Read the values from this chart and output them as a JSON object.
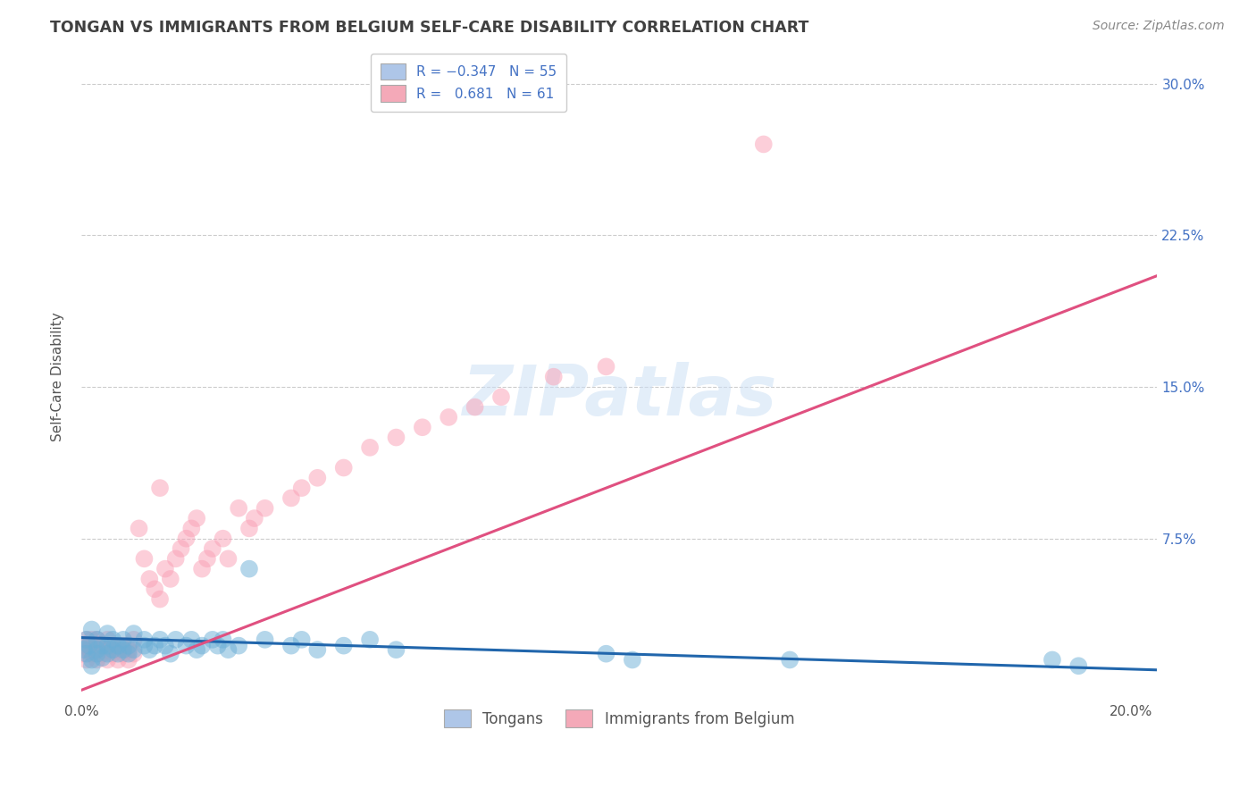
{
  "title": "TONGAN VS IMMIGRANTS FROM BELGIUM SELF-CARE DISABILITY CORRELATION CHART",
  "source": "Source: ZipAtlas.com",
  "ylabel": "Self-Care Disability",
  "xlim": [
    0.0,
    0.205
  ],
  "ylim": [
    -0.005,
    0.315
  ],
  "xticks": [
    0.0,
    0.05,
    0.1,
    0.15,
    0.2
  ],
  "xticklabels": [
    "0.0%",
    "",
    "",
    "",
    "20.0%"
  ],
  "yticks": [
    0.0,
    0.075,
    0.15,
    0.225,
    0.3
  ],
  "yticklabels_left": [
    "",
    "",
    "",
    "",
    ""
  ],
  "yticklabels_right": [
    "",
    "7.5%",
    "15.0%",
    "22.5%",
    "30.0%"
  ],
  "watermark": "ZIPatlas",
  "legend_labels_bottom": [
    "Tongans",
    "Immigrants from Belgium"
  ],
  "blue_color": "#6baed6",
  "pink_color": "#fa9fb5",
  "blue_line_color": "#2166ac",
  "pink_line_color": "#e05080",
  "grid_color": "#cccccc",
  "background_color": "#ffffff",
  "title_color": "#404040",
  "right_tick_color": "#4472c4",
  "blue_trend_x": [
    0.0,
    0.205
  ],
  "blue_trend_y": [
    0.026,
    0.01
  ],
  "pink_trend_x": [
    0.0,
    0.205
  ],
  "pink_trend_y": [
    0.0,
    0.205
  ],
  "identity_line_x": [
    0.05,
    0.205
  ],
  "identity_line_y": [
    0.05,
    0.205
  ],
  "blue_scatter_x": [
    0.0005,
    0.001,
    0.001,
    0.0015,
    0.002,
    0.002,
    0.002,
    0.003,
    0.003,
    0.003,
    0.004,
    0.004,
    0.005,
    0.005,
    0.005,
    0.006,
    0.006,
    0.007,
    0.007,
    0.008,
    0.008,
    0.009,
    0.009,
    0.01,
    0.01,
    0.012,
    0.012,
    0.013,
    0.014,
    0.015,
    0.016,
    0.017,
    0.018,
    0.02,
    0.021,
    0.022,
    0.023,
    0.025,
    0.026,
    0.027,
    0.028,
    0.03,
    0.032,
    0.035,
    0.04,
    0.042,
    0.045,
    0.05,
    0.055,
    0.06,
    0.1,
    0.105,
    0.135,
    0.185,
    0.19
  ],
  "blue_scatter_y": [
    0.02,
    0.025,
    0.018,
    0.022,
    0.015,
    0.03,
    0.012,
    0.02,
    0.018,
    0.025,
    0.022,
    0.016,
    0.018,
    0.022,
    0.028,
    0.02,
    0.025,
    0.018,
    0.022,
    0.02,
    0.025,
    0.018,
    0.022,
    0.02,
    0.028,
    0.022,
    0.025,
    0.02,
    0.022,
    0.025,
    0.022,
    0.018,
    0.025,
    0.022,
    0.025,
    0.02,
    0.022,
    0.025,
    0.022,
    0.025,
    0.02,
    0.022,
    0.06,
    0.025,
    0.022,
    0.025,
    0.02,
    0.022,
    0.025,
    0.02,
    0.018,
    0.015,
    0.015,
    0.015,
    0.012
  ],
  "pink_scatter_x": [
    0.0002,
    0.0005,
    0.001,
    0.001,
    0.0015,
    0.002,
    0.002,
    0.002,
    0.003,
    0.003,
    0.003,
    0.004,
    0.004,
    0.005,
    0.005,
    0.005,
    0.006,
    0.006,
    0.007,
    0.007,
    0.008,
    0.008,
    0.009,
    0.009,
    0.01,
    0.01,
    0.011,
    0.012,
    0.013,
    0.014,
    0.015,
    0.015,
    0.016,
    0.017,
    0.018,
    0.019,
    0.02,
    0.021,
    0.022,
    0.023,
    0.024,
    0.025,
    0.027,
    0.028,
    0.03,
    0.032,
    0.033,
    0.035,
    0.04,
    0.042,
    0.045,
    0.05,
    0.055,
    0.06,
    0.065,
    0.07,
    0.075,
    0.08,
    0.09,
    0.1,
    0.13
  ],
  "pink_scatter_y": [
    0.018,
    0.022,
    0.015,
    0.025,
    0.02,
    0.018,
    0.022,
    0.025,
    0.015,
    0.02,
    0.025,
    0.018,
    0.022,
    0.015,
    0.02,
    0.025,
    0.018,
    0.022,
    0.015,
    0.02,
    0.018,
    0.022,
    0.015,
    0.02,
    0.018,
    0.025,
    0.08,
    0.065,
    0.055,
    0.05,
    0.045,
    0.1,
    0.06,
    0.055,
    0.065,
    0.07,
    0.075,
    0.08,
    0.085,
    0.06,
    0.065,
    0.07,
    0.075,
    0.065,
    0.09,
    0.08,
    0.085,
    0.09,
    0.095,
    0.1,
    0.105,
    0.11,
    0.12,
    0.125,
    0.13,
    0.135,
    0.14,
    0.145,
    0.155,
    0.16,
    0.27
  ],
  "scatter_size": 200,
  "scatter_alpha": 0.5
}
